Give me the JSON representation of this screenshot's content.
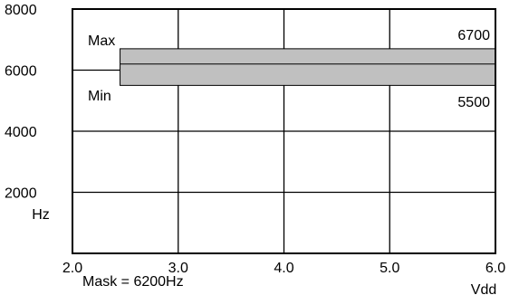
{
  "chart_data": {
    "type": "area",
    "title": "",
    "xlabel": "Vdd",
    "ylabel": "Hz",
    "xlim": [
      2.0,
      6.0
    ],
    "ylim": [
      0,
      8000
    ],
    "xticks": [
      2.0,
      3.0,
      4.0,
      5.0,
      6.0
    ],
    "xtick_labels": [
      "2.0",
      "3.0",
      "4.0",
      "5.0",
      "6.0"
    ],
    "yticks": [
      2000,
      4000,
      6000,
      8000
    ],
    "ytick_labels": [
      "2000",
      "4000",
      "6000",
      "8000"
    ],
    "grid": true,
    "band": {
      "x_start": 2.45,
      "x_end": 6.0,
      "min": 5500,
      "max": 6700,
      "fill_color": "#c0c0c0",
      "max_label": "Max",
      "min_label": "Min",
      "max_value_label": "6700",
      "min_value_label": "5500"
    },
    "center_line": 6200,
    "annotation": "Mask  = 6200Hz"
  }
}
